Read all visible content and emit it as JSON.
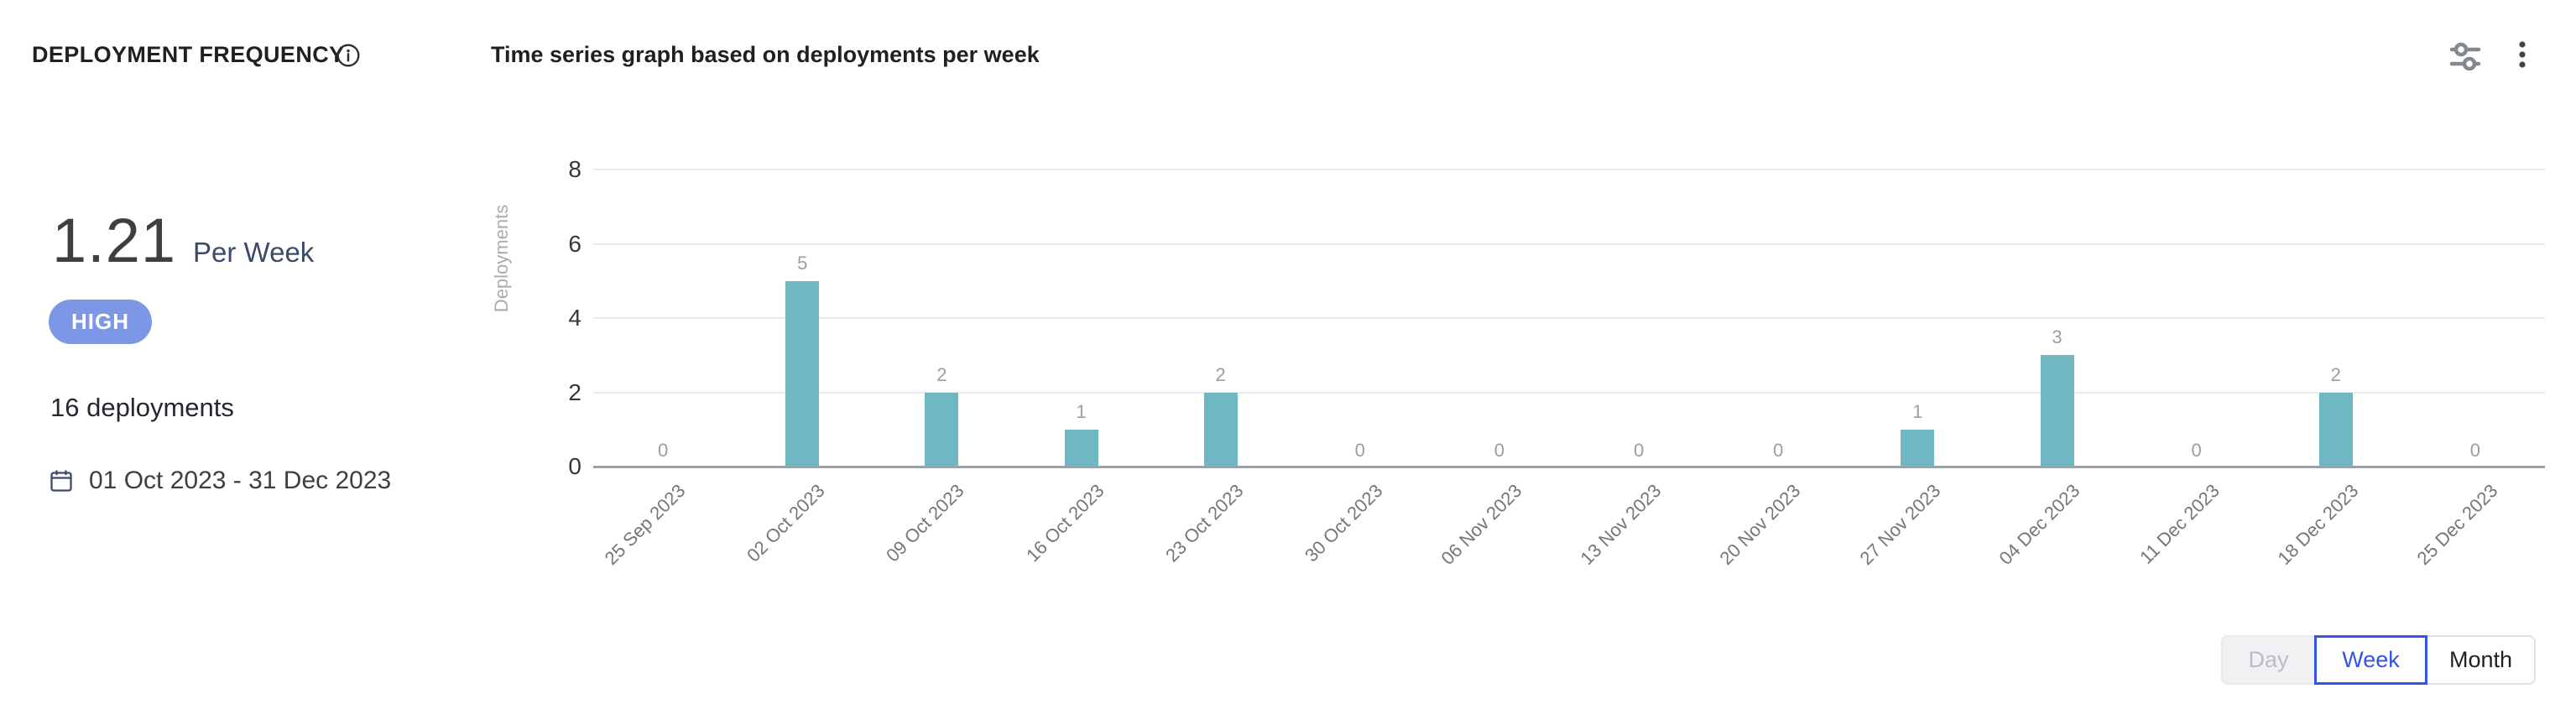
{
  "panel": {
    "title": "DEPLOYMENT FREQUENCY",
    "icons": {
      "info": "info-icon",
      "filter": "filter-sliders-icon",
      "menu": "kebab-menu-icon",
      "calendar": "calendar-icon"
    }
  },
  "summary": {
    "value": "1.21",
    "unit": "Per Week",
    "badge": "HIGH",
    "deployment_count": "16 deployments",
    "date_range": "01 Oct 2023 - 31 Dec 2023"
  },
  "chart_data": {
    "type": "bar",
    "title": "Time series graph based on deployments per week",
    "categories": [
      "25 Sep 2023",
      "02 Oct 2023",
      "09 Oct 2023",
      "16 Oct 2023",
      "23 Oct 2023",
      "30 Oct 2023",
      "06 Nov 2023",
      "13 Nov 2023",
      "20 Nov 2023",
      "27 Nov 2023",
      "04 Dec 2023",
      "11 Dec 2023",
      "18 Dec 2023",
      "25 Dec 2023"
    ],
    "values": [
      0,
      5,
      2,
      1,
      2,
      0,
      0,
      0,
      0,
      1,
      3,
      0,
      2,
      0
    ],
    "xlabel": "",
    "ylabel": "Deployments",
    "ylim": [
      0,
      8
    ],
    "yticks": [
      0,
      2,
      4,
      6,
      8
    ],
    "grid": true,
    "legend": false,
    "data_labels": true,
    "bar_color": "#6FB8C1"
  },
  "colors": {
    "accent_blue": "#3354E8",
    "badge_blue": "#7E96E6",
    "bar_teal": "#6FB8C1"
  },
  "controls": {
    "granularity": [
      {
        "label": "Day",
        "state": "disabled"
      },
      {
        "label": "Week",
        "state": "selected"
      },
      {
        "label": "Month",
        "state": "default"
      }
    ]
  }
}
